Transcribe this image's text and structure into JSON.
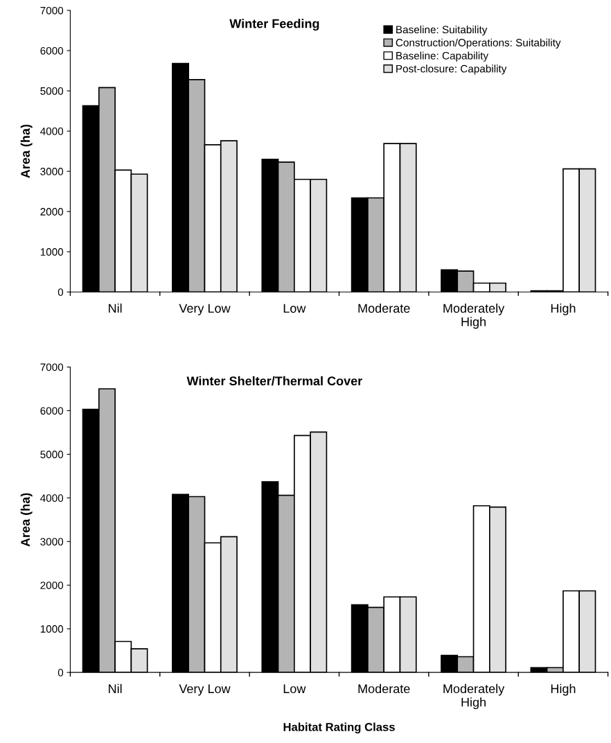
{
  "chart_data": [
    {
      "type": "bar",
      "title": "Winter Feeding",
      "ylabel": "Area (ha)",
      "categories": [
        "Nil",
        "Very Low",
        "Low",
        "Moderate",
        "Moderately\nHigh",
        "High"
      ],
      "ylim": [
        0,
        7000
      ],
      "yticks": [
        0,
        1000,
        2000,
        3000,
        4000,
        5000,
        6000,
        7000
      ],
      "grid": false,
      "legend": "top right",
      "series": [
        {
          "name": "Baseline: Suitability",
          "color": "#000000",
          "values": [
            4630,
            5680,
            3300,
            2340,
            550,
            30
          ]
        },
        {
          "name": "Construction/Operations: Suitability",
          "color": "#b4b4b4",
          "values": [
            5080,
            5280,
            3230,
            2340,
            520,
            30
          ]
        },
        {
          "name": "Baseline: Capability",
          "color": "#ffffff",
          "values": [
            3030,
            3660,
            2800,
            3690,
            220,
            3060
          ]
        },
        {
          "name": "Post-closure: Capability",
          "color": "#e0e0e0",
          "values": [
            2930,
            3760,
            2800,
            3690,
            220,
            3060
          ]
        }
      ]
    },
    {
      "type": "bar",
      "title": "Winter Shelter/Thermal Cover",
      "ylabel": "Area (ha)",
      "xlabel": "Habitat Rating Class",
      "categories": [
        "Nil",
        "Very Low",
        "Low",
        "Moderate",
        "Moderately\nHigh",
        "High"
      ],
      "ylim": [
        0,
        7000
      ],
      "yticks": [
        0,
        1000,
        2000,
        3000,
        4000,
        5000,
        6000,
        7000
      ],
      "grid": false,
      "legend": false,
      "series": [
        {
          "color": "#000000",
          "values": [
            6030,
            4080,
            4370,
            1550,
            390,
            110
          ]
        },
        {
          "color": "#b4b4b4",
          "values": [
            6500,
            4030,
            4060,
            1490,
            360,
            110
          ]
        },
        {
          "color": "#ffffff",
          "values": [
            710,
            2970,
            5430,
            1730,
            3820,
            1870
          ]
        },
        {
          "color": "#e0e0e0",
          "values": [
            540,
            3110,
            5510,
            1730,
            3790,
            1870
          ]
        }
      ]
    }
  ]
}
